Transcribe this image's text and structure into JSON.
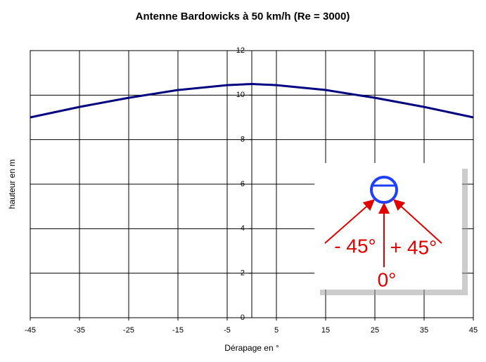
{
  "chart_data": {
    "type": "line",
    "title": "Antenne Bardowicks à 50 km/h (Re = 3000)",
    "x_label": "Dérapage en °",
    "y_label": "hauteur en m",
    "x": [
      -45,
      -35,
      -25,
      -15,
      -5,
      0,
      5,
      15,
      25,
      35,
      45
    ],
    "series": [
      {
        "name": "hauteur",
        "color": "#000080",
        "values": [
          9.0,
          9.47,
          9.88,
          10.23,
          10.45,
          10.5,
          10.45,
          10.23,
          9.88,
          9.47,
          9.0
        ]
      }
    ],
    "xlim": [
      -45,
      45
    ],
    "xticks": [
      -45,
      -35,
      -25,
      -15,
      -5,
      5,
      15,
      25,
      35,
      45
    ],
    "ylim": [
      0,
      12
    ],
    "yticks": [
      0,
      2,
      4,
      6,
      8,
      10,
      12
    ],
    "grid": true,
    "inset": {
      "labels": [
        "- 45°",
        "+ 45°",
        "0°"
      ]
    }
  }
}
